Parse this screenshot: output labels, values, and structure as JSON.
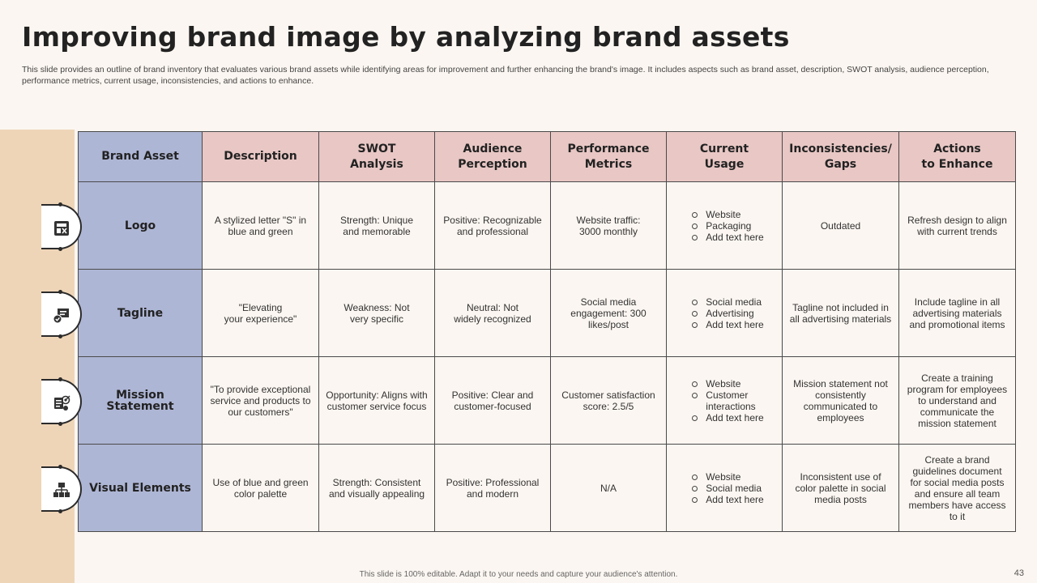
{
  "title": "Improving brand image by analyzing brand assets",
  "subtitle": "This slide provides an outline of brand inventory that evaluates various brand assets while identifying areas for improvement and further enhancing the brand's image. It includes aspects such as brand asset, description, SWOT analysis, audience perception, performance metrics, current usage, inconsistencies, and actions to enhance.",
  "table": {
    "headers": [
      "Brand Asset",
      "Description",
      "SWOT\nAnalysis",
      "Audience\nPerception",
      "Performance\nMetrics",
      "Current\nUsage",
      "Inconsistencies/\nGaps",
      "Actions\nto Enhance"
    ],
    "rows": [
      {
        "asset": "Logo",
        "icon": "logo-design-icon",
        "description": "A stylized letter \"S\" in\nblue and green",
        "swot": "Strength: Unique\nand memorable",
        "perception": "Positive: Recognizable\nand professional",
        "metrics": "Website traffic:\n3000 monthly",
        "usage": [
          "Website",
          "Packaging",
          "Add text here"
        ],
        "gaps": "Outdated",
        "actions": "Refresh design to align\nwith current trends"
      },
      {
        "asset": "Tagline",
        "icon": "speech-bubble-icon",
        "description": "\"Elevating\nyour experience\"",
        "swot": "Weakness: Not\nvery specific",
        "perception": "Neutral: Not\nwidely recognized",
        "metrics": "Social media\nengagement: 300\nlikes/post",
        "usage": [
          "Social media",
          "Advertising",
          "Add text here"
        ],
        "gaps": "Tagline not included in\nall advertising materials",
        "actions": "Include tagline in all\nadvertising materials\nand promotional items"
      },
      {
        "asset": "Mission Statement",
        "icon": "mission-target-icon",
        "description": "\"To provide exceptional\nservice and products to\nour customers\"",
        "swot": "Opportunity: Aligns with\ncustomer service focus",
        "perception": "Positive: Clear and\ncustomer-focused",
        "metrics": "Customer satisfaction\nscore: 2.5/5",
        "usage": [
          "Website",
          "Customer\ninteractions",
          "Add text here"
        ],
        "gaps": "Mission statement not\nconsistently\ncommunicated to\nemployees",
        "actions": "Create a training\nprogram for employees\nto understand and\ncommunicate the\nmission statement"
      },
      {
        "asset": "Visual Elements",
        "icon": "visual-hierarchy-icon",
        "description": "Use of blue and green\ncolor palette",
        "swot": "Strength: Consistent\nand visually appealing",
        "perception": "Positive: Professional\nand modern",
        "metrics": "N/A",
        "usage": [
          "Website",
          "Social media",
          "Add text here"
        ],
        "gaps": "Inconsistent use of\ncolor palette in social\nmedia posts",
        "actions": "Create a brand\nguidelines document\nfor social media posts\nand ensure all team\nmembers have access\nto it"
      }
    ]
  },
  "footer": "This slide is 100% editable. Adapt it to your needs and capture your audience's attention.",
  "page_number": "43",
  "colors": {
    "background": "#fbf6f1",
    "left_band": "#efd5b7",
    "header_pink": "#e8c7c4",
    "asset_blue": "#aeb6d5"
  }
}
